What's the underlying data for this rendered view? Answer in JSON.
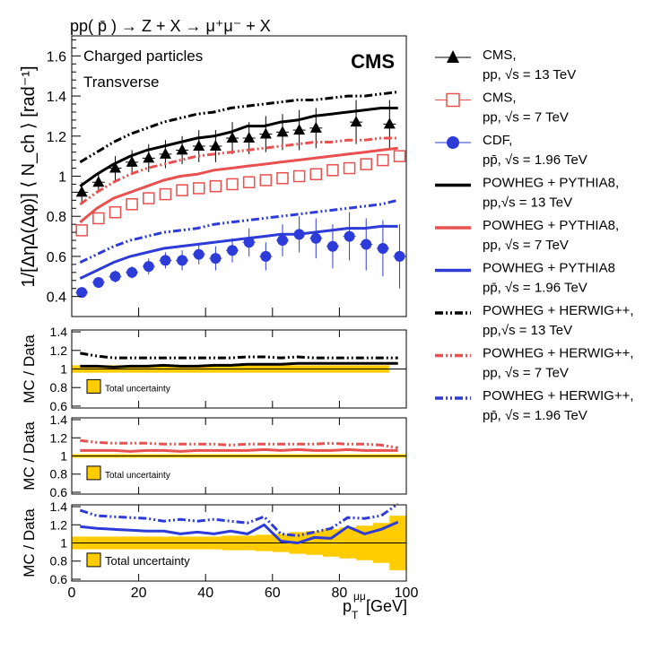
{
  "title": "pp( p̄ ) → Z + X → μ⁺μ⁻ + X",
  "experiment_label": "CMS",
  "chart_data": {
    "type": "line",
    "x_label": "p_T^μμ [GeV]",
    "x_label_parts": {
      "main": "p",
      "sub": "T",
      "sup": "μμ",
      "unit": "[GeV]"
    },
    "xlim": [
      0,
      100
    ],
    "x_ticks": [
      "0",
      "20",
      "40",
      "60",
      "80",
      "100"
    ],
    "x": [
      2.5,
      7.5,
      12.5,
      17.5,
      22.5,
      27.5,
      32.5,
      37.5,
      42.5,
      47.5,
      52.5,
      57.5,
      62.5,
      67.5,
      72.5,
      77.5,
      82.5,
      87.5,
      92.5,
      97.5
    ],
    "main_panel": {
      "ylabel": "1/[ΔηΔ(Δφ)] ⟨ N_ch ⟩ [rad⁻¹]",
      "ylim": [
        0.3,
        1.7
      ],
      "y_ticks": [
        "0.4",
        "0.6",
        "0.8",
        "1",
        "1.2",
        "1.4",
        "1.6"
      ],
      "annotations": [
        "Charged particles",
        "Transverse"
      ],
      "series": [
        {
          "name": "CMS, pp, √s = 13 TeV",
          "style": "data-triangle",
          "color": "#000000",
          "x": [
            3,
            8,
            13,
            18,
            23,
            28,
            33,
            38,
            43,
            48,
            53,
            58,
            63,
            68,
            73,
            85,
            95
          ],
          "values": [
            0.92,
            0.97,
            1.04,
            1.07,
            1.09,
            1.11,
            1.13,
            1.15,
            1.15,
            1.19,
            1.19,
            1.21,
            1.22,
            1.23,
            1.24,
            1.27,
            1.26
          ],
          "errors": [
            0.05,
            0.05,
            0.06,
            0.06,
            0.07,
            0.07,
            0.07,
            0.08,
            0.08,
            0.08,
            0.08,
            0.09,
            0.09,
            0.1,
            0.1,
            0.11,
            0.12
          ]
        },
        {
          "name": "CMS, pp, √s = 7 TeV",
          "style": "data-open-square",
          "color": "#e8514f",
          "x": [
            3,
            8,
            13,
            18,
            23,
            28,
            33,
            38,
            43,
            48,
            53,
            58,
            63,
            68,
            73,
            78,
            83,
            88,
            93,
            98
          ],
          "values": [
            0.73,
            0.79,
            0.82,
            0.86,
            0.89,
            0.91,
            0.93,
            0.94,
            0.95,
            0.96,
            0.97,
            0.98,
            0.99,
            1.0,
            1.01,
            1.03,
            1.04,
            1.06,
            1.08,
            1.1
          ],
          "errors": [
            0.02,
            0.02,
            0.02,
            0.02,
            0.02,
            0.02,
            0.02,
            0.02,
            0.02,
            0.02,
            0.02,
            0.02,
            0.02,
            0.02,
            0.02,
            0.02,
            0.02,
            0.02,
            0.02,
            0.02
          ]
        },
        {
          "name": "CDF, pp̄, √s = 1.96 TeV",
          "style": "data-circle",
          "color": "#2d3bd8",
          "x": [
            3,
            8,
            13,
            18,
            23,
            28,
            33,
            38,
            43,
            48,
            53,
            58,
            63,
            68,
            73,
            78,
            83,
            88,
            93,
            98
          ],
          "values": [
            0.42,
            0.47,
            0.5,
            0.52,
            0.55,
            0.58,
            0.58,
            0.61,
            0.59,
            0.63,
            0.67,
            0.6,
            0.68,
            0.71,
            0.69,
            0.65,
            0.7,
            0.66,
            0.64,
            0.6
          ],
          "errors": [
            0.02,
            0.02,
            0.03,
            0.03,
            0.04,
            0.04,
            0.05,
            0.05,
            0.06,
            0.06,
            0.07,
            0.07,
            0.08,
            0.09,
            0.1,
            0.11,
            0.12,
            0.13,
            0.14,
            0.16
          ]
        },
        {
          "name": "POWHEG + PYTHIA8, pp, √s = 13 TeV",
          "style": "solid",
          "color": "#000000",
          "values": [
            0.95,
            1.01,
            1.06,
            1.1,
            1.13,
            1.15,
            1.17,
            1.19,
            1.2,
            1.22,
            1.25,
            1.25,
            1.27,
            1.28,
            1.3,
            1.31,
            1.32,
            1.33,
            1.34,
            1.34
          ]
        },
        {
          "name": "POWHEG + PYTHIA8, pp, √s = 7 TeV",
          "style": "solid",
          "color": "#e8514f",
          "values": [
            0.77,
            0.84,
            0.89,
            0.92,
            0.95,
            0.98,
            1.0,
            1.01,
            1.03,
            1.04,
            1.05,
            1.06,
            1.07,
            1.08,
            1.09,
            1.1,
            1.11,
            1.12,
            1.13,
            1.14
          ]
        },
        {
          "name": "POWHEG + PYTHIA8, pp̄, √s = 1.96 TeV",
          "style": "solid",
          "color": "#2d3bd8",
          "values": [
            0.49,
            0.53,
            0.57,
            0.6,
            0.62,
            0.64,
            0.65,
            0.66,
            0.67,
            0.68,
            0.69,
            0.7,
            0.71,
            0.71,
            0.72,
            0.73,
            0.74,
            0.74,
            0.75,
            0.75
          ]
        },
        {
          "name": "POWHEG + HERWIG++, pp, √s = 13 TeV",
          "style": "dash-dot",
          "color": "#000000",
          "values": [
            1.07,
            1.12,
            1.17,
            1.21,
            1.24,
            1.27,
            1.29,
            1.31,
            1.32,
            1.34,
            1.35,
            1.36,
            1.37,
            1.38,
            1.38,
            1.39,
            1.4,
            1.4,
            1.41,
            1.42
          ]
        },
        {
          "name": "POWHEG + HERWIG++, pp, √s = 7 TeV",
          "style": "dash-dot",
          "color": "#e8514f",
          "values": [
            0.86,
            0.92,
            0.97,
            1.01,
            1.04,
            1.06,
            1.08,
            1.1,
            1.11,
            1.12,
            1.13,
            1.14,
            1.15,
            1.16,
            1.17,
            1.17,
            1.18,
            1.18,
            1.19,
            1.19
          ]
        },
        {
          "name": "POWHEG + HERWIG++, pp̄, √s = 1.96 TeV",
          "style": "dash-dot",
          "color": "#2d3bd8",
          "values": [
            0.57,
            0.61,
            0.65,
            0.68,
            0.7,
            0.72,
            0.73,
            0.74,
            0.76,
            0.77,
            0.78,
            0.79,
            0.8,
            0.81,
            0.82,
            0.83,
            0.84,
            0.85,
            0.86,
            0.88
          ]
        }
      ]
    },
    "ratio_panels": [
      {
        "ylabel": "MC / Data",
        "ylim": [
          0.58,
          1.42
        ],
        "y_ticks": [
          "0.6",
          "0.8",
          "1",
          "1.2",
          "1.4"
        ],
        "uncertainty_label": "Total uncertainty",
        "x_end": 95,
        "uncertainty_lo": [
          0.96,
          0.96,
          0.96,
          0.96,
          0.96,
          0.96,
          0.96,
          0.96,
          0.96,
          0.96,
          0.96,
          0.96,
          0.96,
          0.96,
          0.96,
          0.96,
          0.96,
          0.96,
          0.96,
          0.96
        ],
        "uncertainty_hi": [
          1.04,
          1.04,
          1.04,
          1.04,
          1.04,
          1.04,
          1.04,
          1.04,
          1.04,
          1.04,
          1.04,
          1.04,
          1.04,
          1.04,
          1.04,
          1.04,
          1.04,
          1.04,
          1.04,
          1.04
        ],
        "series": [
          {
            "name": "PYTHIA8",
            "style": "solid",
            "color": "#000000",
            "values": [
              1.03,
              1.03,
              1.02,
              1.03,
              1.03,
              1.04,
              1.03,
              1.03,
              1.04,
              1.04,
              1.05,
              1.05,
              1.05,
              1.06,
              1.06,
              1.06,
              1.06,
              1.06,
              1.06,
              1.06
            ]
          },
          {
            "name": "HERWIG++",
            "style": "dash-dot",
            "color": "#000000",
            "values": [
              1.17,
              1.14,
              1.12,
              1.12,
              1.12,
              1.12,
              1.12,
              1.12,
              1.12,
              1.12,
              1.13,
              1.13,
              1.12,
              1.13,
              1.12,
              1.12,
              1.12,
              1.12,
              1.12,
              1.12
            ]
          }
        ]
      },
      {
        "ylabel": "MC / Data",
        "ylim": [
          0.58,
          1.42
        ],
        "y_ticks": [
          "0.6",
          "0.8",
          "1",
          "1.2",
          "1.4"
        ],
        "uncertainty_label": "Total uncertainty",
        "x_end": 100,
        "uncertainty_lo": [
          0.98,
          0.98,
          0.98,
          0.98,
          0.98,
          0.98,
          0.98,
          0.98,
          0.98,
          0.98,
          0.98,
          0.98,
          0.98,
          0.98,
          0.98,
          0.98,
          0.98,
          0.98,
          0.98,
          0.98
        ],
        "uncertainty_hi": [
          1.02,
          1.02,
          1.02,
          1.02,
          1.02,
          1.02,
          1.02,
          1.02,
          1.02,
          1.02,
          1.02,
          1.02,
          1.02,
          1.02,
          1.02,
          1.02,
          1.02,
          1.02,
          1.02,
          1.02
        ],
        "series": [
          {
            "name": "PYTHIA8",
            "style": "solid",
            "color": "#e8514f",
            "values": [
              1.06,
              1.06,
              1.06,
              1.05,
              1.06,
              1.06,
              1.05,
              1.06,
              1.06,
              1.06,
              1.06,
              1.07,
              1.06,
              1.07,
              1.06,
              1.06,
              1.07,
              1.06,
              1.06,
              1.06
            ]
          },
          {
            "name": "HERWIG++",
            "style": "dash-dot",
            "color": "#e8514f",
            "values": [
              1.17,
              1.15,
              1.14,
              1.14,
              1.14,
              1.13,
              1.13,
              1.13,
              1.13,
              1.12,
              1.13,
              1.13,
              1.13,
              1.13,
              1.13,
              1.14,
              1.13,
              1.13,
              1.12,
              1.09
            ]
          }
        ]
      },
      {
        "ylabel": "MC / Data",
        "ylim": [
          0.58,
          1.42
        ],
        "y_ticks": [
          "0.6",
          "0.8",
          "1",
          "1.2",
          "1.4"
        ],
        "uncertainty_label": "Total uncertainty",
        "x_end": 100,
        "uncertainty_lo": [
          0.93,
          0.93,
          0.93,
          0.93,
          0.93,
          0.93,
          0.93,
          0.93,
          0.93,
          0.92,
          0.92,
          0.91,
          0.9,
          0.88,
          0.87,
          0.85,
          0.83,
          0.81,
          0.78,
          0.7
        ],
        "uncertainty_hi": [
          1.07,
          1.07,
          1.07,
          1.07,
          1.07,
          1.07,
          1.07,
          1.07,
          1.07,
          1.08,
          1.08,
          1.09,
          1.1,
          1.12,
          1.13,
          1.15,
          1.17,
          1.19,
          1.22,
          1.3
        ],
        "series": [
          {
            "name": "PYTHIA8",
            "style": "solid",
            "color": "#2d3bd8",
            "values": [
              1.18,
              1.16,
              1.15,
              1.14,
              1.13,
              1.13,
              1.1,
              1.12,
              1.1,
              1.13,
              1.1,
              1.2,
              1.02,
              1.0,
              1.06,
              1.05,
              1.18,
              1.1,
              1.15,
              1.23
            ]
          },
          {
            "name": "HERWIG++",
            "style": "dash-dot",
            "color": "#2d3bd8",
            "values": [
              1.36,
              1.3,
              1.29,
              1.28,
              1.27,
              1.24,
              1.26,
              1.24,
              1.26,
              1.24,
              1.22,
              1.29,
              1.1,
              1.08,
              1.12,
              1.16,
              1.28,
              1.27,
              1.3,
              1.43
            ]
          }
        ]
      }
    ]
  },
  "legend": [
    {
      "style": "data-triangle",
      "color": "#000000",
      "line1": "CMS,",
      "line2": "pp, √s = 13 TeV"
    },
    {
      "style": "data-open-square",
      "color": "#e8514f",
      "line1": "CMS,",
      "line2": "pp, √s = 7 TeV"
    },
    {
      "style": "data-circle",
      "color": "#2d3bd8",
      "line1": "CDF,",
      "line2": "pp̄, √s = 1.96 TeV"
    },
    {
      "style": "solid",
      "color": "#000000",
      "line1": "POWHEG + PYTHIA8,",
      "line2": "pp,√s = 13 TeV"
    },
    {
      "style": "solid",
      "color": "#e8514f",
      "line1": "POWHEG + PYTHIA8,",
      "line2": "pp, √s = 7 TeV"
    },
    {
      "style": "solid",
      "color": "#2d3bd8",
      "line1": "POWHEG + PYTHIA8",
      "line2": "pp̄, √s = 1.96 TeV"
    },
    {
      "style": "dash-dot",
      "color": "#000000",
      "line1": "POWHEG + HERWIG++,",
      "line2": "pp,√s = 13 TeV"
    },
    {
      "style": "dash-dot",
      "color": "#e8514f",
      "line1": "POWHEG + HERWIG++,",
      "line2": "pp, √s = 7 TeV"
    },
    {
      "style": "dash-dot",
      "color": "#2d3bd8",
      "line1": "POWHEG + HERWIG++,",
      "line2": "pp̄, √s = 1.96 TeV"
    }
  ],
  "colors": {
    "uncertainty_band": "#ffcc00",
    "axis": "#000000"
  }
}
